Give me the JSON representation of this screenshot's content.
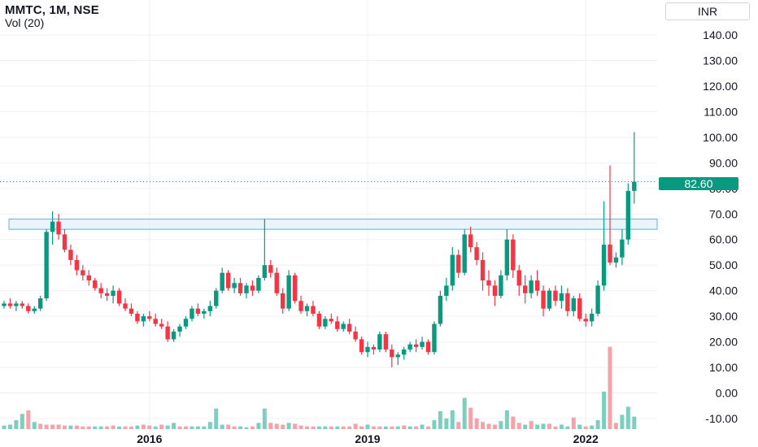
{
  "header": {
    "title": "MMTC, 1M, NSE",
    "indicator": "Vol (20)"
  },
  "currency": "INR",
  "colors": {
    "up": "#089981",
    "down": "#f23645",
    "vol_up": "#7ccfbf",
    "vol_down": "#f5a3a8",
    "zone_fill": "#e3f1fb",
    "zone_border": "#5fb5d6",
    "grid": "#eef0f3",
    "price_line": "#089981"
  },
  "chart_data": {
    "type": "candlestick",
    "symbol": "MMTC",
    "interval": "1M",
    "exchange": "NSE",
    "y_axis": {
      "ticks": [
        "140.00",
        "130.00",
        "120.00",
        "110.00",
        "100.00",
        "90.00",
        "80.00",
        "70.00",
        "60.00",
        "50.00",
        "40.00",
        "30.00",
        "20.00",
        "10.00",
        "0.00",
        "-10.00"
      ],
      "ylim": [
        -12,
        145
      ]
    },
    "x_axis": {
      "ticks": [
        {
          "label": "2016",
          "index": 24
        },
        {
          "label": "2019",
          "index": 60
        },
        {
          "label": "2022",
          "index": 96
        }
      ]
    },
    "last_price": "82.60",
    "last_price_value": 82.6,
    "resistance_zone": [
      64,
      68
    ],
    "candles": [
      [
        34,
        36,
        33,
        35
      ],
      [
        35,
        37,
        33,
        34
      ],
      [
        34,
        36,
        32,
        35
      ],
      [
        35,
        36,
        33,
        34
      ],
      [
        34,
        35,
        31,
        32
      ],
      [
        32,
        34,
        31,
        33
      ],
      [
        33,
        38,
        32,
        37
      ],
      [
        37,
        64,
        36,
        63
      ],
      [
        63,
        71,
        58,
        67
      ],
      [
        67,
        70,
        60,
        62
      ],
      [
        62,
        64,
        55,
        56
      ],
      [
        56,
        58,
        50,
        52
      ],
      [
        52,
        54,
        46,
        48
      ],
      [
        48,
        50,
        44,
        46
      ],
      [
        46,
        48,
        42,
        44
      ],
      [
        44,
        45,
        40,
        41
      ],
      [
        41,
        43,
        37,
        39
      ],
      [
        39,
        41,
        36,
        38
      ],
      [
        38,
        42,
        35,
        40
      ],
      [
        40,
        41,
        34,
        35
      ],
      [
        35,
        37,
        32,
        33
      ],
      [
        33,
        35,
        30,
        31
      ],
      [
        31,
        32,
        27,
        28
      ],
      [
        28,
        31,
        26,
        30
      ],
      [
        30,
        32,
        28,
        29
      ],
      [
        29,
        31,
        26,
        27
      ],
      [
        27,
        29,
        25,
        26
      ],
      [
        26,
        28,
        20,
        21
      ],
      [
        21,
        25,
        20,
        24
      ],
      [
        24,
        27,
        22,
        26
      ],
      [
        26,
        30,
        25,
        29
      ],
      [
        29,
        34,
        28,
        33
      ],
      [
        33,
        35,
        30,
        31
      ],
      [
        31,
        33,
        29,
        32
      ],
      [
        32,
        36,
        30,
        34
      ],
      [
        34,
        41,
        33,
        40
      ],
      [
        40,
        49,
        39,
        47
      ],
      [
        47,
        48,
        40,
        41
      ],
      [
        41,
        45,
        39,
        43
      ],
      [
        43,
        45,
        38,
        39
      ],
      [
        39,
        43,
        37,
        42
      ],
      [
        42,
        44,
        38,
        40
      ],
      [
        40,
        46,
        39,
        45
      ],
      [
        45,
        68,
        44,
        50
      ],
      [
        50,
        52,
        45,
        47
      ],
      [
        47,
        49,
        38,
        39
      ],
      [
        39,
        41,
        31,
        33
      ],
      [
        33,
        48,
        32,
        46
      ],
      [
        46,
        47,
        35,
        36
      ],
      [
        36,
        38,
        31,
        32
      ],
      [
        32,
        35,
        30,
        34
      ],
      [
        34,
        36,
        30,
        31
      ],
      [
        31,
        32,
        25,
        26
      ],
      [
        26,
        30,
        25,
        29
      ],
      [
        29,
        31,
        27,
        28
      ],
      [
        28,
        30,
        24,
        25
      ],
      [
        25,
        28,
        24,
        27
      ],
      [
        27,
        29,
        23,
        24
      ],
      [
        24,
        26,
        20,
        21
      ],
      [
        21,
        22,
        15,
        16
      ],
      [
        16,
        20,
        14,
        18
      ],
      [
        18,
        19,
        15,
        17
      ],
      [
        17,
        24,
        16,
        23
      ],
      [
        23,
        24,
        16,
        17
      ],
      [
        17,
        19,
        10,
        14
      ],
      [
        14,
        16,
        11,
        15
      ],
      [
        15,
        18,
        13,
        17
      ],
      [
        17,
        20,
        16,
        19
      ],
      [
        19,
        21,
        16,
        18
      ],
      [
        18,
        22,
        17,
        20
      ],
      [
        20,
        21,
        15,
        16
      ],
      [
        16,
        28,
        15,
        27
      ],
      [
        27,
        40,
        26,
        38
      ],
      [
        38,
        45,
        36,
        42
      ],
      [
        42,
        57,
        40,
        54
      ],
      [
        54,
        56,
        45,
        47
      ],
      [
        47,
        64,
        46,
        62
      ],
      [
        62,
        65,
        55,
        57
      ],
      [
        57,
        59,
        50,
        52
      ],
      [
        52,
        55,
        40,
        44
      ],
      [
        44,
        48,
        38,
        42
      ],
      [
        42,
        44,
        34,
        38
      ],
      [
        38,
        48,
        37,
        46
      ],
      [
        46,
        64,
        44,
        60
      ],
      [
        60,
        62,
        45,
        48
      ],
      [
        48,
        50,
        38,
        42
      ],
      [
        42,
        46,
        35,
        39
      ],
      [
        39,
        46,
        37,
        44
      ],
      [
        44,
        48,
        38,
        40
      ],
      [
        40,
        42,
        30,
        33
      ],
      [
        33,
        41,
        32,
        40
      ],
      [
        40,
        42,
        34,
        36
      ],
      [
        36,
        42,
        33,
        39
      ],
      [
        39,
        41,
        30,
        32
      ],
      [
        32,
        38,
        30,
        37
      ],
      [
        37,
        39,
        28,
        29
      ],
      [
        29,
        31,
        26,
        28
      ],
      [
        28,
        33,
        26,
        31
      ],
      [
        31,
        44,
        30,
        42
      ],
      [
        42,
        75,
        40,
        58
      ],
      [
        58,
        89,
        50,
        51
      ],
      [
        51,
        55,
        49,
        53
      ],
      [
        53,
        64,
        50,
        60
      ],
      [
        60,
        82,
        58,
        79
      ],
      [
        79,
        102,
        74,
        82.6
      ]
    ],
    "volume": [
      [
        2.0,
        1
      ],
      [
        2.5,
        1
      ],
      [
        5.0,
        1
      ],
      [
        8.5,
        1
      ],
      [
        10.5,
        0
      ],
      [
        4.0,
        1
      ],
      [
        3.0,
        0
      ],
      [
        2.5,
        0
      ],
      [
        2.5,
        0
      ],
      [
        2.5,
        0
      ],
      [
        2.0,
        0
      ],
      [
        2.0,
        1
      ],
      [
        2.0,
        0
      ],
      [
        1.5,
        0
      ],
      [
        1.5,
        0
      ],
      [
        1.5,
        1
      ],
      [
        1.5,
        1
      ],
      [
        1.5,
        0
      ],
      [
        2.0,
        0
      ],
      [
        1.5,
        1
      ],
      [
        1.5,
        0
      ],
      [
        1.5,
        0
      ],
      [
        2.0,
        1
      ],
      [
        2.5,
        0
      ],
      [
        2.0,
        0
      ],
      [
        1.5,
        1
      ],
      [
        2.5,
        0
      ],
      [
        2.0,
        1
      ],
      [
        3.5,
        1
      ],
      [
        1.5,
        0
      ],
      [
        1.5,
        0
      ],
      [
        1.5,
        1
      ],
      [
        1.5,
        1
      ],
      [
        1.5,
        1
      ],
      [
        4.0,
        1
      ],
      [
        11.5,
        1
      ],
      [
        2.5,
        1
      ],
      [
        2.5,
        0
      ],
      [
        1.5,
        0
      ],
      [
        1.5,
        1
      ],
      [
        1.0,
        1
      ],
      [
        1.5,
        0
      ],
      [
        3.5,
        1
      ],
      [
        11.5,
        1
      ],
      [
        3.5,
        0
      ],
      [
        3.0,
        0
      ],
      [
        2.5,
        0
      ],
      [
        3.5,
        1
      ],
      [
        3.0,
        0
      ],
      [
        2.0,
        0
      ],
      [
        1.5,
        0
      ],
      [
        1.5,
        0
      ],
      [
        1.5,
        1
      ],
      [
        1.5,
        1
      ],
      [
        1.5,
        0
      ],
      [
        1.5,
        1
      ],
      [
        1.5,
        0
      ],
      [
        1.5,
        0
      ],
      [
        3.0,
        0
      ],
      [
        1.5,
        0
      ],
      [
        2.5,
        1
      ],
      [
        1.5,
        0
      ],
      [
        1.5,
        0
      ],
      [
        1.5,
        1
      ],
      [
        1.5,
        0
      ],
      [
        1.5,
        1
      ],
      [
        2.0,
        0
      ],
      [
        1.5,
        1
      ],
      [
        1.5,
        0
      ],
      [
        2.5,
        1
      ],
      [
        1.5,
        0
      ],
      [
        5.0,
        1
      ],
      [
        10.0,
        1
      ],
      [
        6.0,
        1
      ],
      [
        10.5,
        1
      ],
      [
        4.0,
        0
      ],
      [
        17.5,
        1
      ],
      [
        12.0,
        0
      ],
      [
        6.0,
        0
      ],
      [
        4.0,
        0
      ],
      [
        3.0,
        0
      ],
      [
        2.5,
        0
      ],
      [
        4.5,
        1
      ],
      [
        10.5,
        1
      ],
      [
        7.0,
        0
      ],
      [
        3.5,
        0
      ],
      [
        2.5,
        1
      ],
      [
        4.5,
        0
      ],
      [
        2.5,
        1
      ],
      [
        3.0,
        1
      ],
      [
        3.0,
        0
      ],
      [
        1.5,
        0
      ],
      [
        2.5,
        1
      ],
      [
        1.5,
        1
      ],
      [
        6.5,
        0
      ],
      [
        2.5,
        1
      ],
      [
        1.5,
        0
      ],
      [
        2.0,
        1
      ],
      [
        5.0,
        1
      ],
      [
        21.0,
        1
      ],
      [
        46.0,
        0
      ],
      [
        3.5,
        0
      ],
      [
        8.0,
        1
      ],
      [
        12.5,
        1
      ],
      [
        7.0,
        1
      ]
    ]
  }
}
